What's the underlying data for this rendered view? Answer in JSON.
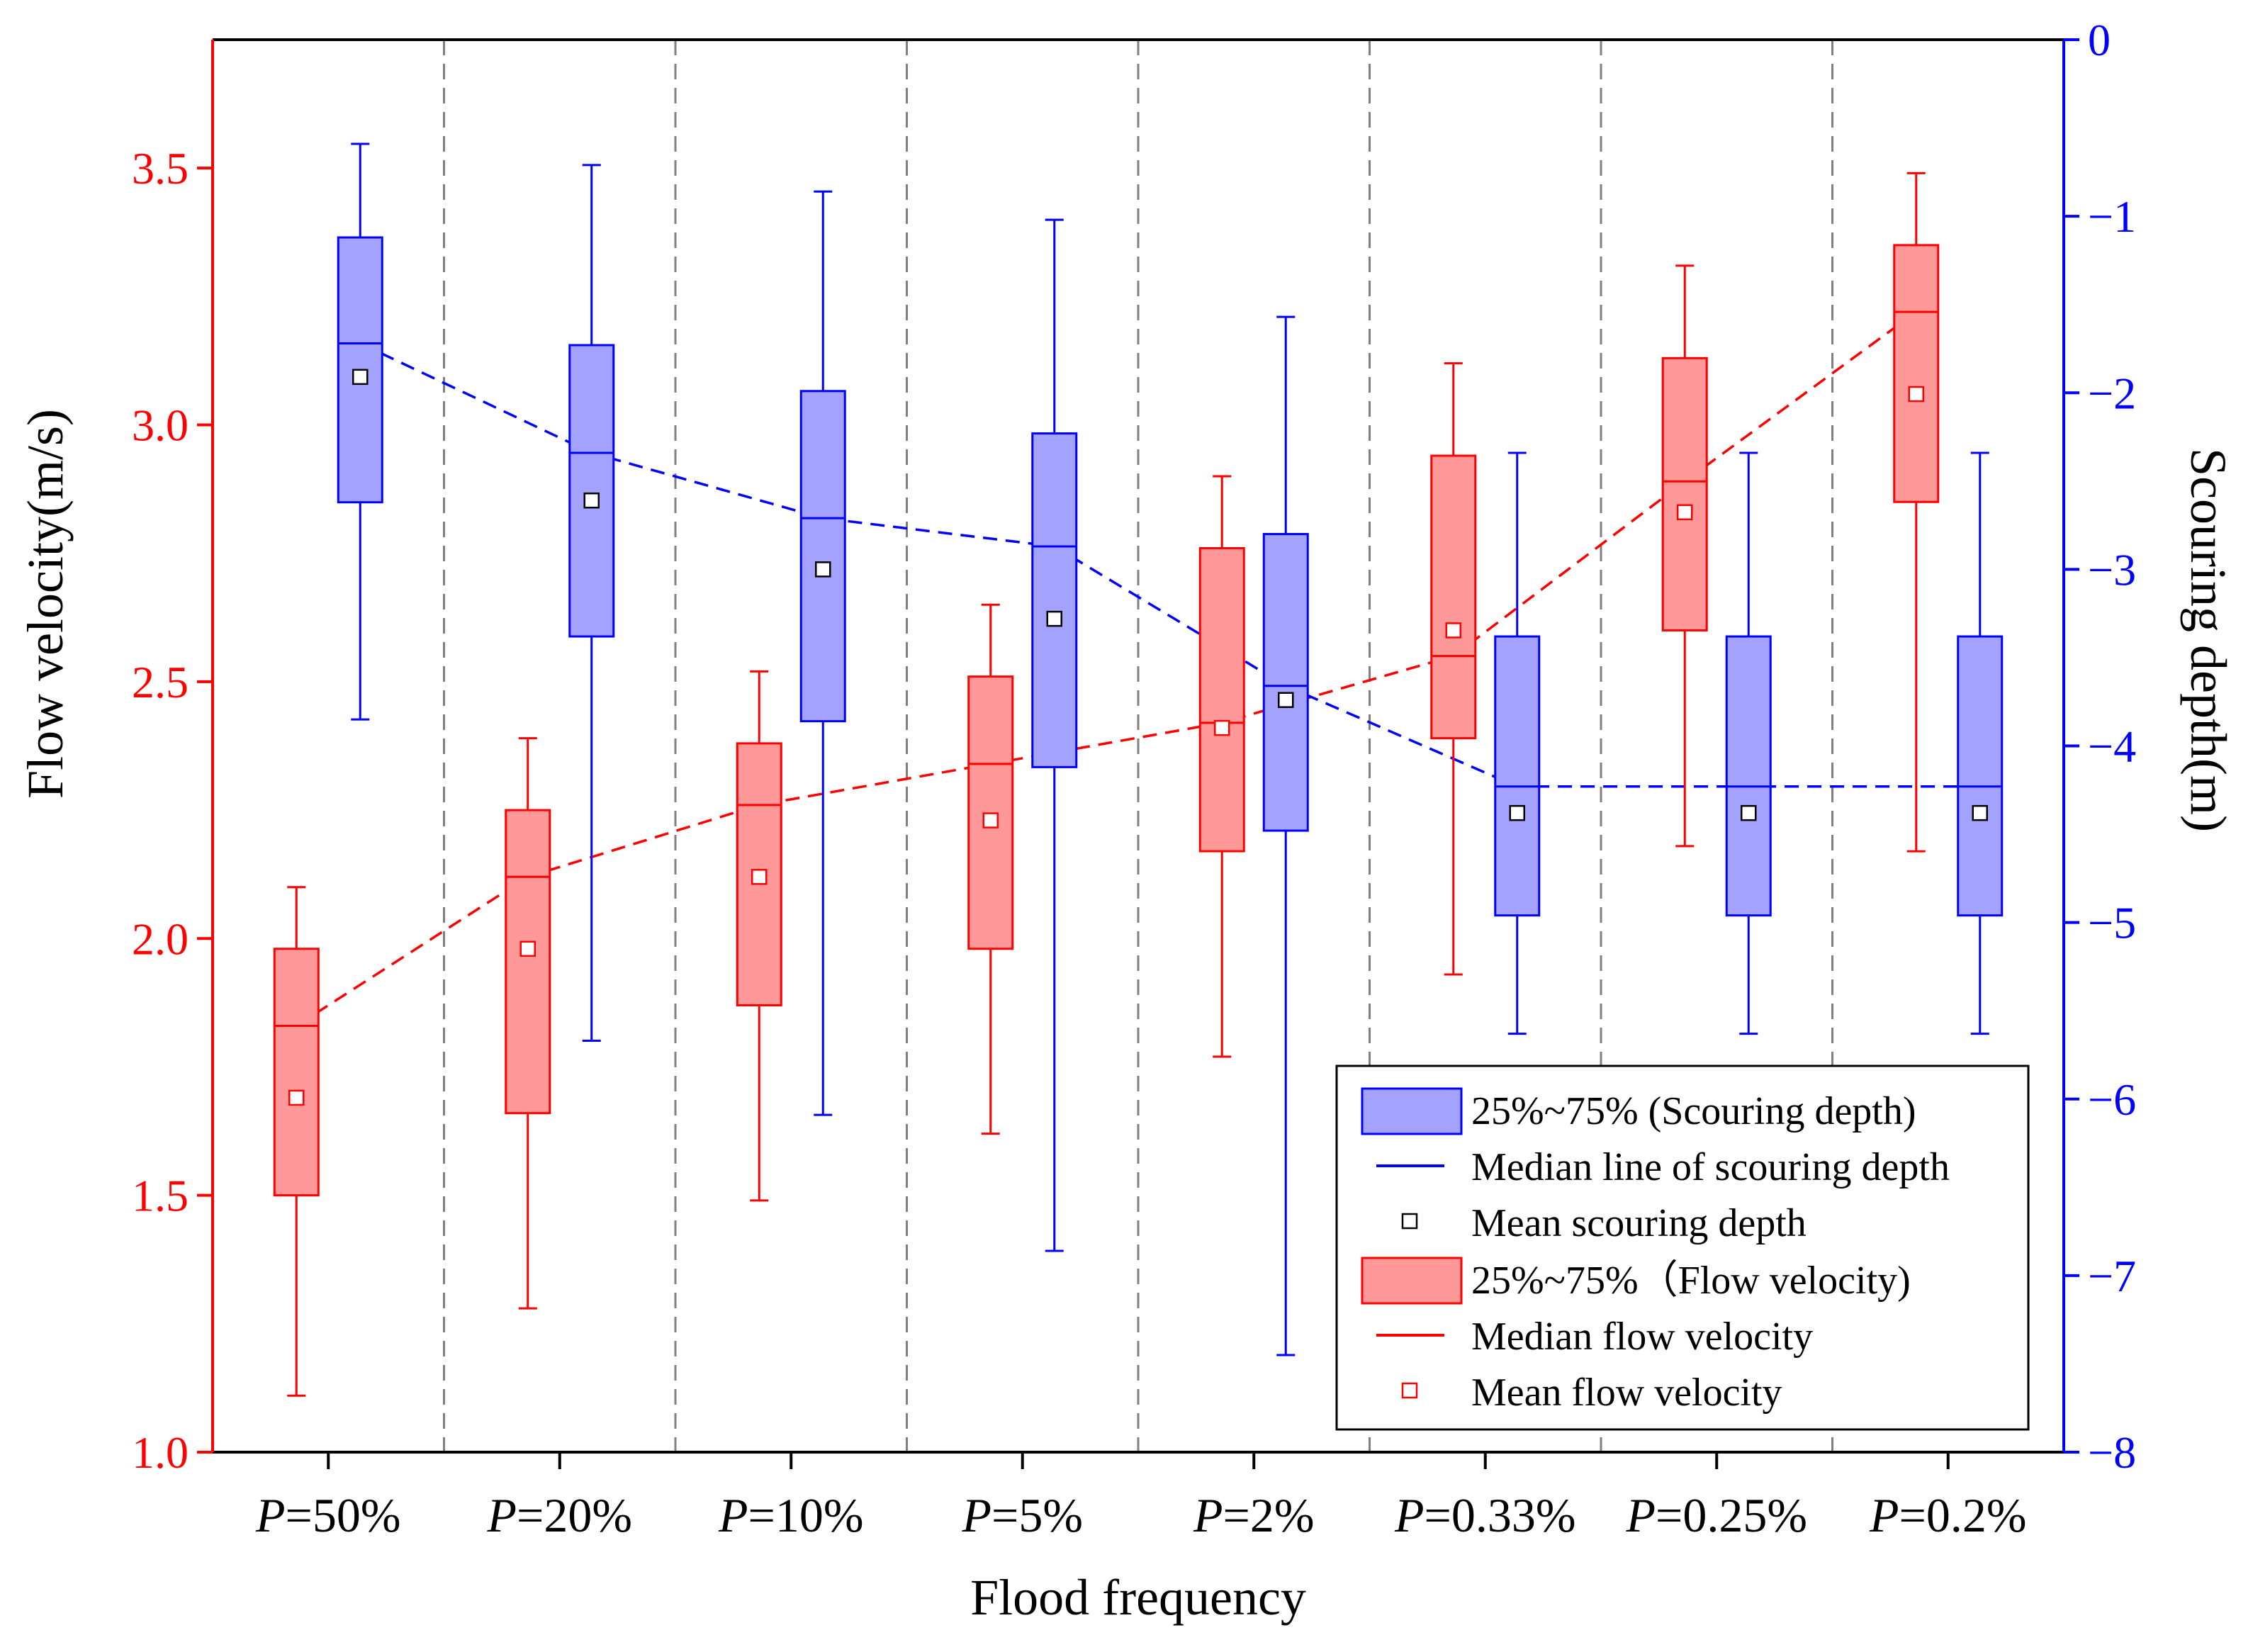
{
  "colors": {
    "velocity": "#ff0000",
    "velocity_fill": "#ff9999",
    "scour": "#0000ff",
    "scour_fill": "#a3a3ff",
    "separator": "#808080"
  },
  "chart_data": {
    "type": "box",
    "xlabel": "Flood frequency",
    "ylabel_left": "Flow velocity(m/s)",
    "ylabel_right": "Scouring depth(m)",
    "ylim_left": [
      1.0,
      3.75
    ],
    "ylim_right": [
      -8,
      0
    ],
    "yticks_left": [
      "1.0",
      "1.5",
      "2.0",
      "2.5",
      "3.0",
      "3.5"
    ],
    "yticks_right": [
      "0",
      "−1",
      "−2",
      "−3",
      "−4",
      "−5",
      "−6",
      "−7",
      "−8"
    ],
    "categories": [
      {
        "prefix": "P",
        "suffix": "=50%"
      },
      {
        "prefix": "P",
        "suffix": "=20%"
      },
      {
        "prefix": "P",
        "suffix": "=10%"
      },
      {
        "prefix": "P",
        "suffix": "=5%"
      },
      {
        "prefix": "P",
        "suffix": "=2%"
      },
      {
        "prefix": "P",
        "suffix": "=0.33%"
      },
      {
        "prefix": "P",
        "suffix": "=0.25%"
      },
      {
        "prefix": "P",
        "suffix": "=0.2%"
      }
    ],
    "series": [
      {
        "name": "Flow velocity",
        "axis": "left",
        "whisker_low": [
          1.11,
          1.28,
          1.49,
          1.62,
          1.77,
          1.93,
          2.18,
          2.17
        ],
        "q1": [
          1.5,
          1.66,
          1.87,
          1.98,
          2.17,
          2.39,
          2.6,
          2.85
        ],
        "median": [
          1.83,
          2.12,
          2.26,
          2.34,
          2.42,
          2.55,
          2.89,
          3.22
        ],
        "q3": [
          1.98,
          2.25,
          2.38,
          2.51,
          2.76,
          2.94,
          3.13,
          3.35
        ],
        "whisker_high": [
          2.1,
          2.39,
          2.52,
          2.65,
          2.9,
          3.12,
          3.31,
          3.49
        ],
        "mean": [
          1.69,
          1.98,
          2.12,
          2.23,
          2.41,
          2.6,
          2.83,
          3.06
        ]
      },
      {
        "name": "Scouring depth",
        "axis": "right",
        "whisker_low": [
          -3.85,
          -5.67,
          -6.09,
          -6.86,
          -7.45,
          -5.63,
          -5.63,
          -5.63
        ],
        "q1": [
          -2.62,
          -3.38,
          -3.86,
          -4.12,
          -4.48,
          -4.96,
          -4.96,
          -4.96
        ],
        "median": [
          -1.72,
          -2.34,
          -2.71,
          -2.87,
          -3.66,
          -4.23,
          -4.23,
          -4.23
        ],
        "q3": [
          -1.12,
          -1.73,
          -1.99,
          -2.23,
          -2.8,
          -3.38,
          -3.38,
          -3.38
        ],
        "whisker_high": [
          -0.59,
          -0.71,
          -0.86,
          -1.02,
          -1.57,
          -2.34,
          -2.34,
          -2.34
        ],
        "mean": [
          -1.91,
          -2.61,
          -3.0,
          -3.28,
          -3.74,
          -4.38,
          -4.38,
          -4.38
        ]
      }
    ],
    "legend": {
      "position": "bottom-right",
      "items": [
        "25%~75% (Scouring depth)",
        "Median line of scouring depth",
        "Mean scouring depth",
        "25%~75%（Flow velocity)",
        "Median flow velocity",
        "Mean flow velocity"
      ]
    }
  }
}
